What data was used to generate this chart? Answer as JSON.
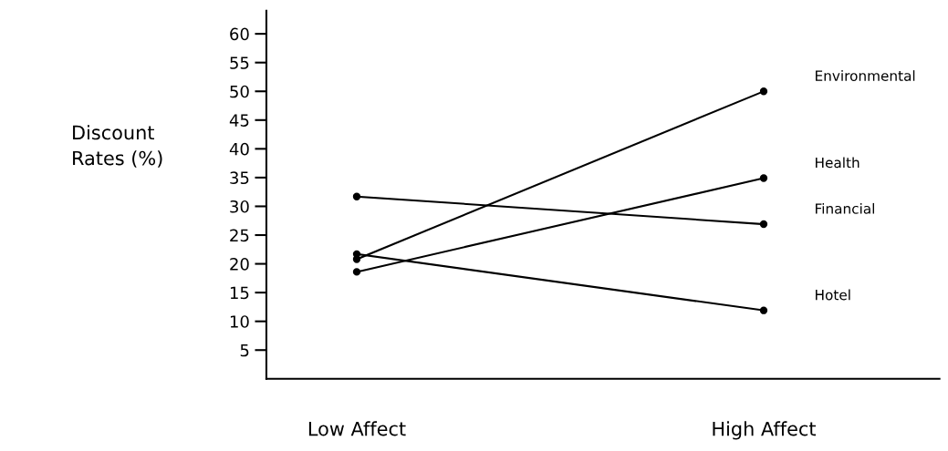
{
  "chart_data": {
    "type": "line",
    "ylabel": "Discount\nRates (%)",
    "categories": [
      "Low Affect",
      "High Affect"
    ],
    "series": [
      {
        "name": "Environmental",
        "color": "#000000",
        "values": [
          20.8,
          50
        ]
      },
      {
        "name": "Health",
        "color": "#000000",
        "values": [
          18.6,
          34.9
        ]
      },
      {
        "name": "Financial",
        "color": "#000000",
        "values": [
          31.7,
          26.9
        ]
      },
      {
        "name": "Hotel",
        "color": "#000000",
        "values": [
          21.7,
          11.9
        ]
      }
    ],
    "ylim": [
      0,
      64
    ],
    "yticks": [
      5,
      10,
      15,
      20,
      25,
      30,
      35,
      40,
      45,
      50,
      55,
      60
    ],
    "marker": "circle",
    "line_style": "solid",
    "grid": false,
    "legend": false
  }
}
